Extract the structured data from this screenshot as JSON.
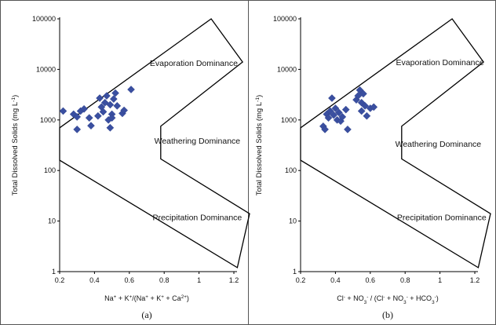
{
  "chart_data": [
    {
      "type": "scatter",
      "panel_label": "(a)",
      "title": "",
      "xlabel": "Na+ + K+/(Na+ + K+ + Ca2+)",
      "xlabel_parts": [
        {
          "t": "Na"
        },
        {
          "t": "+",
          "sup": true
        },
        {
          "t": " + K"
        },
        {
          "t": "+",
          "sup": true
        },
        {
          "t": "/(Na"
        },
        {
          "t": "+",
          "sup": true
        },
        {
          "t": " + K"
        },
        {
          "t": "+",
          "sup": true
        },
        {
          "t": " + Ca"
        },
        {
          "t": "2+",
          "sup": true
        },
        {
          "t": ")"
        }
      ],
      "ylabel": "Total Dissolved Solids (mg L-1)",
      "ylabel_parts": [
        {
          "t": "Total Dissolved Solids (mg L"
        },
        {
          "t": "-1",
          "sup": true
        },
        {
          "t": ")"
        }
      ],
      "x_scale": "linear",
      "y_scale": "log",
      "xlim": [
        0.2,
        1.2
      ],
      "ylim": [
        1,
        100000
      ],
      "xticks": [
        "0.2",
        "0.4",
        "0.6",
        "0.8",
        "1",
        "1.2"
      ],
      "yticks": [
        "1",
        "10",
        "100",
        "1000",
        "10000",
        "100000"
      ],
      "grid": false,
      "boomerang": [
        [
          0.2,
          700
        ],
        [
          1.07,
          100000
        ],
        [
          1.25,
          14000
        ],
        [
          0.78,
          750
        ],
        [
          0.78,
          170
        ],
        [
          1.29,
          14
        ],
        [
          1.22,
          1.2
        ],
        [
          0.2,
          160
        ]
      ],
      "regions": [
        {
          "label": "Evaporation Dominance",
          "x": 0.97,
          "y": 13500
        },
        {
          "label": "Weathering Dominance",
          "x": 0.99,
          "y": 390
        },
        {
          "label": "Precipitation Dominance",
          "x": 0.99,
          "y": 12
        }
      ],
      "color": "#3a4fa0",
      "points": [
        {
          "x": 0.22,
          "y": 1500
        },
        {
          "x": 0.28,
          "y": 1300
        },
        {
          "x": 0.3,
          "y": 1150
        },
        {
          "x": 0.3,
          "y": 650
        },
        {
          "x": 0.32,
          "y": 1500
        },
        {
          "x": 0.34,
          "y": 1650
        },
        {
          "x": 0.37,
          "y": 1100
        },
        {
          "x": 0.38,
          "y": 770
        },
        {
          "x": 0.42,
          "y": 1200
        },
        {
          "x": 0.43,
          "y": 2700
        },
        {
          "x": 0.44,
          "y": 1800
        },
        {
          "x": 0.45,
          "y": 1450
        },
        {
          "x": 0.46,
          "y": 2200
        },
        {
          "x": 0.47,
          "y": 3000
        },
        {
          "x": 0.48,
          "y": 1000
        },
        {
          "x": 0.49,
          "y": 2000
        },
        {
          "x": 0.49,
          "y": 700
        },
        {
          "x": 0.5,
          "y": 1300
        },
        {
          "x": 0.51,
          "y": 2600
        },
        {
          "x": 0.52,
          "y": 3400
        },
        {
          "x": 0.53,
          "y": 1900
        },
        {
          "x": 0.56,
          "y": 1350
        },
        {
          "x": 0.57,
          "y": 1550
        },
        {
          "x": 0.61,
          "y": 4000
        },
        {
          "x": 0.5,
          "y": 1100
        }
      ]
    },
    {
      "type": "scatter",
      "panel_label": "(b)",
      "title": "",
      "xlabel": "Cl- + NO3- / (Cl- + NO3- + HCO3-)",
      "xlabel_parts": [
        {
          "t": "Cl"
        },
        {
          "t": "-",
          "sup": true
        },
        {
          "t": " + NO"
        },
        {
          "t": "3",
          "sub": true
        },
        {
          "t": "-",
          "sup": true
        },
        {
          "t": " / (Cl"
        },
        {
          "t": "-",
          "sup": true
        },
        {
          "t": " + NO"
        },
        {
          "t": "3",
          "sub": true
        },
        {
          "t": "-",
          "sup": true
        },
        {
          "t": " + HCO"
        },
        {
          "t": "3",
          "sub": true
        },
        {
          "t": "-",
          "sup": true
        },
        {
          "t": ")"
        }
      ],
      "ylabel": "Total Dissolved Solids (mg L-1)",
      "ylabel_parts": [
        {
          "t": "Total Dissolved Solids (mg L"
        },
        {
          "t": "-1",
          "sup": true
        },
        {
          "t": ")"
        }
      ],
      "x_scale": "linear",
      "y_scale": "log",
      "xlim": [
        0.2,
        1.2
      ],
      "ylim": [
        1,
        100000
      ],
      "xticks": [
        "0.2",
        "0.4",
        "0.6",
        "0.8",
        "1",
        "1.2"
      ],
      "yticks": [
        "1",
        "10",
        "100",
        "1000",
        "10000",
        "100000"
      ],
      "grid": false,
      "boomerang": [
        [
          0.2,
          700
        ],
        [
          1.07,
          100000
        ],
        [
          1.25,
          14000
        ],
        [
          0.78,
          750
        ],
        [
          0.78,
          170
        ],
        [
          1.29,
          14
        ],
        [
          1.22,
          1.2
        ],
        [
          0.2,
          160
        ]
      ],
      "regions": [
        {
          "label": "Evaporation Dominance",
          "x": 1.0,
          "y": 14000
        },
        {
          "label": "Weathering Dominance",
          "x": 0.99,
          "y": 340
        },
        {
          "label": "Precipitation Dominance",
          "x": 1.01,
          "y": 12
        }
      ],
      "color": "#3a4fa0",
      "points": [
        {
          "x": 0.33,
          "y": 750
        },
        {
          "x": 0.34,
          "y": 650
        },
        {
          "x": 0.35,
          "y": 1300
        },
        {
          "x": 0.36,
          "y": 1100
        },
        {
          "x": 0.37,
          "y": 1500
        },
        {
          "x": 0.38,
          "y": 2700
        },
        {
          "x": 0.39,
          "y": 1250
        },
        {
          "x": 0.4,
          "y": 1700
        },
        {
          "x": 0.41,
          "y": 1000
        },
        {
          "x": 0.42,
          "y": 1400
        },
        {
          "x": 0.43,
          "y": 950
        },
        {
          "x": 0.44,
          "y": 1150
        },
        {
          "x": 0.46,
          "y": 1600
        },
        {
          "x": 0.47,
          "y": 650
        },
        {
          "x": 0.52,
          "y": 2500
        },
        {
          "x": 0.53,
          "y": 3000
        },
        {
          "x": 0.54,
          "y": 3900
        },
        {
          "x": 0.55,
          "y": 2200
        },
        {
          "x": 0.56,
          "y": 3300
        },
        {
          "x": 0.57,
          "y": 1900
        },
        {
          "x": 0.58,
          "y": 1200
        },
        {
          "x": 0.6,
          "y": 1700
        },
        {
          "x": 0.62,
          "y": 1800
        },
        {
          "x": 0.55,
          "y": 1500
        }
      ]
    }
  ]
}
